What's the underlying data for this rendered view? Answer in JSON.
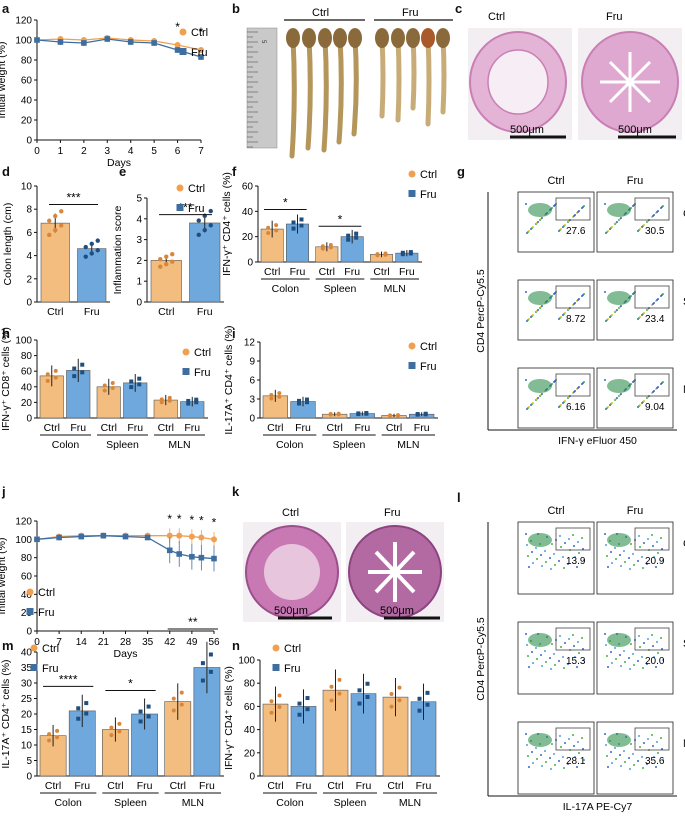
{
  "figure": {
    "panel_letters": [
      "a",
      "b",
      "c",
      "d",
      "e",
      "f",
      "g",
      "h",
      "i",
      "j",
      "k",
      "l",
      "m",
      "n"
    ],
    "group_ctrl": "Ctrl",
    "group_fru": "Fru",
    "tissues": [
      "Colon",
      "Spleen",
      "MLN"
    ],
    "colors": {
      "ctrl": "#F0A050",
      "ctrl_bar": "#F2BD7F",
      "fru": "#3E6EA0",
      "fru_bar": "#6FA8DC",
      "he_pink": "#D88FBF"
    },
    "scale_bar_label": "500μm",
    "significance": {
      "one": "*",
      "two": "**",
      "three": "***",
      "four": "****"
    }
  },
  "panel_a": {
    "ylabel": "Initial weight (%)",
    "xlabel": "Days"
  },
  "panel_b": {
    "ruler_numbers": [
      "5",
      "6",
      "7",
      "8",
      "9",
      "10",
      "11",
      "12",
      "13"
    ]
  },
  "panel_d": {
    "ylabel": "Colon length (cm)"
  },
  "panel_e": {
    "ylabel": "Inflammation score"
  },
  "panel_f": {
    "ylabel": "IFN-γ⁺ CD4⁺ cells (%)"
  },
  "panel_g": {
    "axis_x_label": "IFN-γ eFluor 450",
    "axis_y_label": "CD4 PercP-Cy5.5",
    "values": {
      "Colon": [
        "27.6",
        "30.5"
      ],
      "Spleen": [
        "8.72",
        "23.4"
      ],
      "MLN": [
        "6.16",
        "9.04"
      ]
    }
  },
  "panel_h": {
    "ylabel": "IFN-γ⁺ CD8⁺ cells (%)"
  },
  "panel_i": {
    "ylabel": "IL-17A⁺ CD4⁺ cells (%)"
  },
  "panel_j": {
    "ylabel": "Initial weight (%)",
    "xlabel": "Days"
  },
  "panel_l": {
    "axis_x_label": "IL-17A PE-Cy7",
    "axis_y_label": "CD4 PercP-Cy5.5",
    "values": {
      "Colon": [
        "13.9",
        "20.9"
      ],
      "Spleen": [
        "15.3",
        "20.0"
      ],
      "MLN": [
        "28.1",
        "35.6"
      ]
    }
  },
  "panel_m": {
    "ylabel": "IL-17A⁺ CD4⁺ cells (%)"
  },
  "panel_n": {
    "ylabel": "IFN-γ⁺ CD4⁺ cells (%)"
  },
  "chart_data": [
    {
      "id": "a",
      "type": "line",
      "xlabel": "Days",
      "ylabel": "Initial weight (%)",
      "x": [
        0,
        1,
        2,
        3,
        4,
        5,
        6,
        7
      ],
      "ylim": [
        0,
        120
      ],
      "yticks": [
        0,
        20,
        40,
        60,
        80,
        100,
        120
      ],
      "series": [
        {
          "name": "Ctrl",
          "values": [
            100,
            101,
            100,
            102,
            100,
            99,
            95,
            90
          ]
        },
        {
          "name": "Fru",
          "values": [
            100,
            98,
            97,
            101,
            98,
            97,
            90,
            83
          ]
        }
      ],
      "annotations": [
        {
          "x": 6,
          "text": "*"
        },
        {
          "x": 7,
          "text": "*"
        }
      ]
    },
    {
      "id": "d",
      "type": "bar",
      "ylabel": "Colon length (cm)",
      "categories": [
        "Ctrl",
        "Fru"
      ],
      "values": [
        6.8,
        4.6
      ],
      "ylim": [
        0,
        10
      ],
      "yticks": [
        0,
        2,
        4,
        6,
        8,
        10
      ],
      "sig": "***"
    },
    {
      "id": "e",
      "type": "bar",
      "ylabel": "Inflammation score",
      "categories": [
        "Ctrl",
        "Fru"
      ],
      "values": [
        2.0,
        3.8
      ],
      "ylim": [
        0,
        5
      ],
      "yticks": [
        0,
        1,
        2,
        3,
        4,
        5
      ],
      "sig": "***"
    },
    {
      "id": "f",
      "type": "bar",
      "ylabel": "IFN-γ⁺ CD4⁺ cells (%)",
      "groups": [
        "Colon",
        "Spleen",
        "MLN"
      ],
      "ylim": [
        0,
        60
      ],
      "yticks": [
        0,
        20,
        40,
        60
      ],
      "series": [
        {
          "name": "Ctrl",
          "values": [
            26,
            12,
            6
          ]
        },
        {
          "name": "Fru",
          "values": [
            30,
            20,
            7
          ]
        }
      ],
      "sig": [
        {
          "group": "Colon",
          "text": "*"
        },
        {
          "group": "Spleen",
          "text": "*"
        }
      ]
    },
    {
      "id": "h",
      "type": "bar",
      "ylabel": "IFN-γ⁺ CD8⁺ cells (%)",
      "groups": [
        "Colon",
        "Spleen",
        "MLN"
      ],
      "ylim": [
        0,
        100
      ],
      "yticks": [
        0,
        20,
        40,
        60,
        80,
        100
      ],
      "series": [
        {
          "name": "Ctrl",
          "values": [
            54,
            40,
            23
          ]
        },
        {
          "name": "Fru",
          "values": [
            61,
            45,
            21
          ]
        }
      ]
    },
    {
      "id": "i",
      "type": "bar",
      "ylabel": "IL-17A⁺ CD4⁺ cells (%)",
      "groups": [
        "Colon",
        "Spleen",
        "MLN"
      ],
      "ylim": [
        0,
        12
      ],
      "yticks": [
        0,
        3,
        6,
        9,
        12
      ],
      "series": [
        {
          "name": "Ctrl",
          "values": [
            3.5,
            0.6,
            0.4
          ]
        },
        {
          "name": "Fru",
          "values": [
            2.6,
            0.7,
            0.6
          ]
        }
      ]
    },
    {
      "id": "j",
      "type": "line",
      "xlabel": "Days",
      "ylabel": "Initial weight (%)",
      "x": [
        0,
        7,
        14,
        21,
        28,
        35,
        42,
        45,
        49,
        52,
        56
      ],
      "ylim": [
        0,
        120
      ],
      "yticks": [
        0,
        20,
        40,
        60,
        80,
        100,
        120
      ],
      "series": [
        {
          "name": "Ctrl",
          "values": [
            100,
            103,
            104,
            104,
            104,
            104,
            104,
            104,
            103,
            102,
            100
          ]
        },
        {
          "name": "Fru",
          "values": [
            100,
            102,
            103,
            104,
            103,
            102,
            88,
            84,
            81,
            80,
            79
          ]
        }
      ],
      "annotations": [
        {
          "x": 42,
          "text": "*"
        },
        {
          "x": 45,
          "text": "*"
        },
        {
          "x": 49,
          "text": "*"
        },
        {
          "x": 52,
          "text": "*"
        },
        {
          "x": 56,
          "text": "*"
        }
      ]
    },
    {
      "id": "m",
      "type": "bar",
      "ylabel": "IL-17A⁺ CD4⁺ cells (%)",
      "groups": [
        "Colon",
        "Spleen",
        "MLN"
      ],
      "ylim": [
        0,
        40
      ],
      "yticks": [
        0,
        5,
        10,
        15,
        20,
        25,
        30,
        35,
        40
      ],
      "series": [
        {
          "name": "Ctrl",
          "values": [
            13,
            15,
            24
          ]
        },
        {
          "name": "Fru",
          "values": [
            21,
            20,
            35
          ]
        }
      ],
      "sig": [
        {
          "group": "Colon",
          "text": "****"
        },
        {
          "group": "Spleen",
          "text": "*"
        },
        {
          "group": "MLN",
          "text": "**"
        }
      ]
    },
    {
      "id": "n",
      "type": "bar",
      "ylabel": "IFN-γ⁺ CD4⁺ cells (%)",
      "groups": [
        "Colon",
        "Spleen",
        "MLN"
      ],
      "ylim": [
        0,
        100
      ],
      "yticks": [
        0,
        20,
        40,
        60,
        80,
        100
      ],
      "series": [
        {
          "name": "Ctrl",
          "values": [
            62,
            74,
            68
          ]
        },
        {
          "name": "Fru",
          "values": [
            60,
            71,
            64
          ]
        }
      ]
    }
  ]
}
